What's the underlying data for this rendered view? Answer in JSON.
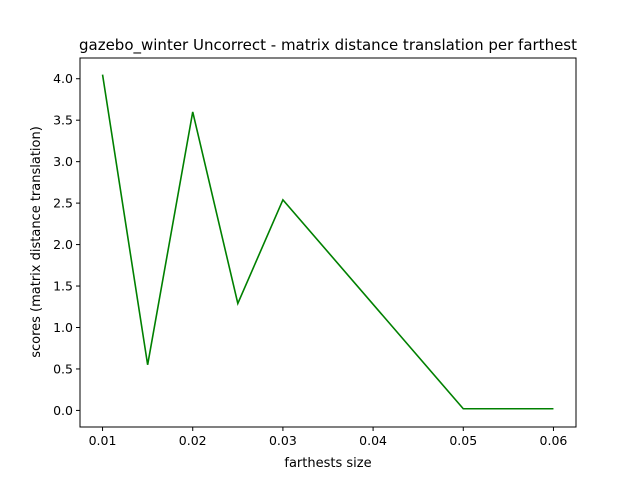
{
  "chart_data": {
    "type": "line",
    "title": "gazebo_winter Uncorrect - matrix distance translation per farthest",
    "xlabel": "farthests size",
    "ylabel": "scores (matrix distance translation)",
    "xlim": [
      0.0075,
      0.0625
    ],
    "ylim": [
      -0.2,
      4.25
    ],
    "x_ticks": [
      0.01,
      0.02,
      0.03,
      0.04,
      0.05,
      0.06
    ],
    "x_tick_labels": [
      "0.01",
      "0.02",
      "0.03",
      "0.04",
      "0.05",
      "0.06"
    ],
    "y_ticks": [
      0.0,
      0.5,
      1.0,
      1.5,
      2.0,
      2.5,
      3.0,
      3.5,
      4.0
    ],
    "y_tick_labels": [
      "0.0",
      "0.5",
      "1.0",
      "1.5",
      "2.0",
      "2.5",
      "3.0",
      "3.5",
      "4.0"
    ],
    "grid": false,
    "series": [
      {
        "color": "#008000",
        "x": [
          0.01,
          0.015,
          0.02,
          0.025,
          0.03,
          0.05,
          0.06
        ],
        "y": [
          4.05,
          0.55,
          3.6,
          1.29,
          2.54,
          0.02,
          0.02
        ]
      }
    ]
  }
}
